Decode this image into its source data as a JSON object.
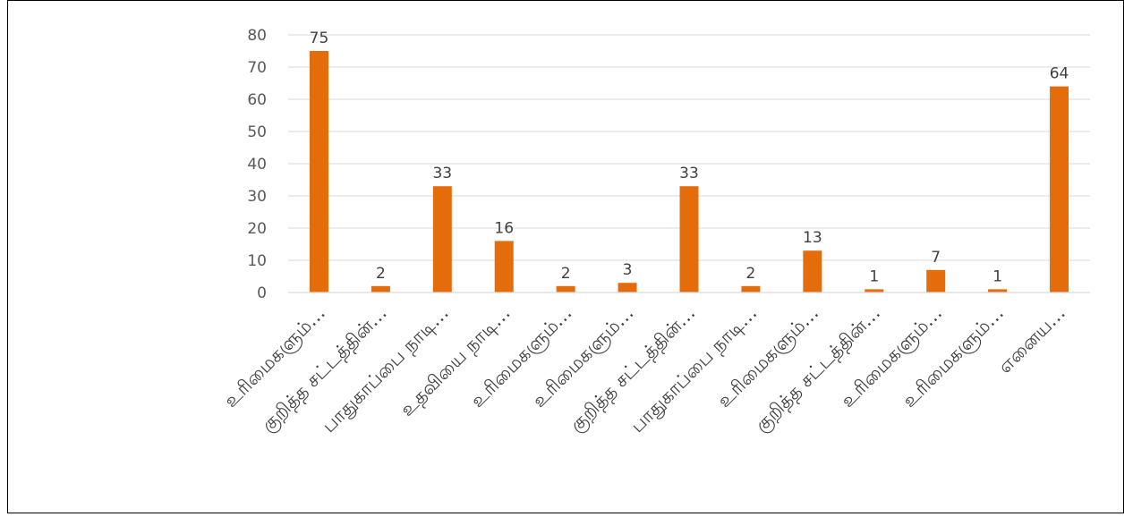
{
  "chart_data": {
    "type": "bar",
    "categories": [
      "உரிமைகளும்…",
      "குறித்த சட்டத்தின்…",
      "பாதுகாப்பை நாடி…",
      "உதவியை நாடி…",
      "உரிமைகளும்…",
      "உரிமைகளும்…",
      "குறித்த சட்டத்தின்…",
      "பாதுகாப்பை நாடி…",
      "உரிமைகளும்…",
      "குறித்த சட்டத்தின்…",
      "உரிமைகளும்…",
      "உரிமைகளும்…",
      "எனைய…"
    ],
    "values": [
      75,
      2,
      33,
      16,
      2,
      3,
      33,
      2,
      13,
      1,
      7,
      1,
      64
    ],
    "data_labels": [
      "75",
      "2",
      "33",
      "16",
      "2",
      "3",
      "33",
      "2",
      "13",
      "1",
      "7",
      "1",
      "64"
    ],
    "yticks": [
      "0",
      "10",
      "20",
      "30",
      "40",
      "50",
      "60",
      "70",
      "80"
    ],
    "ylim": [
      0,
      80
    ],
    "grid": true,
    "legend": "none",
    "bar_color": "#E46C0A",
    "grid_color": "#D9D9D9"
  }
}
